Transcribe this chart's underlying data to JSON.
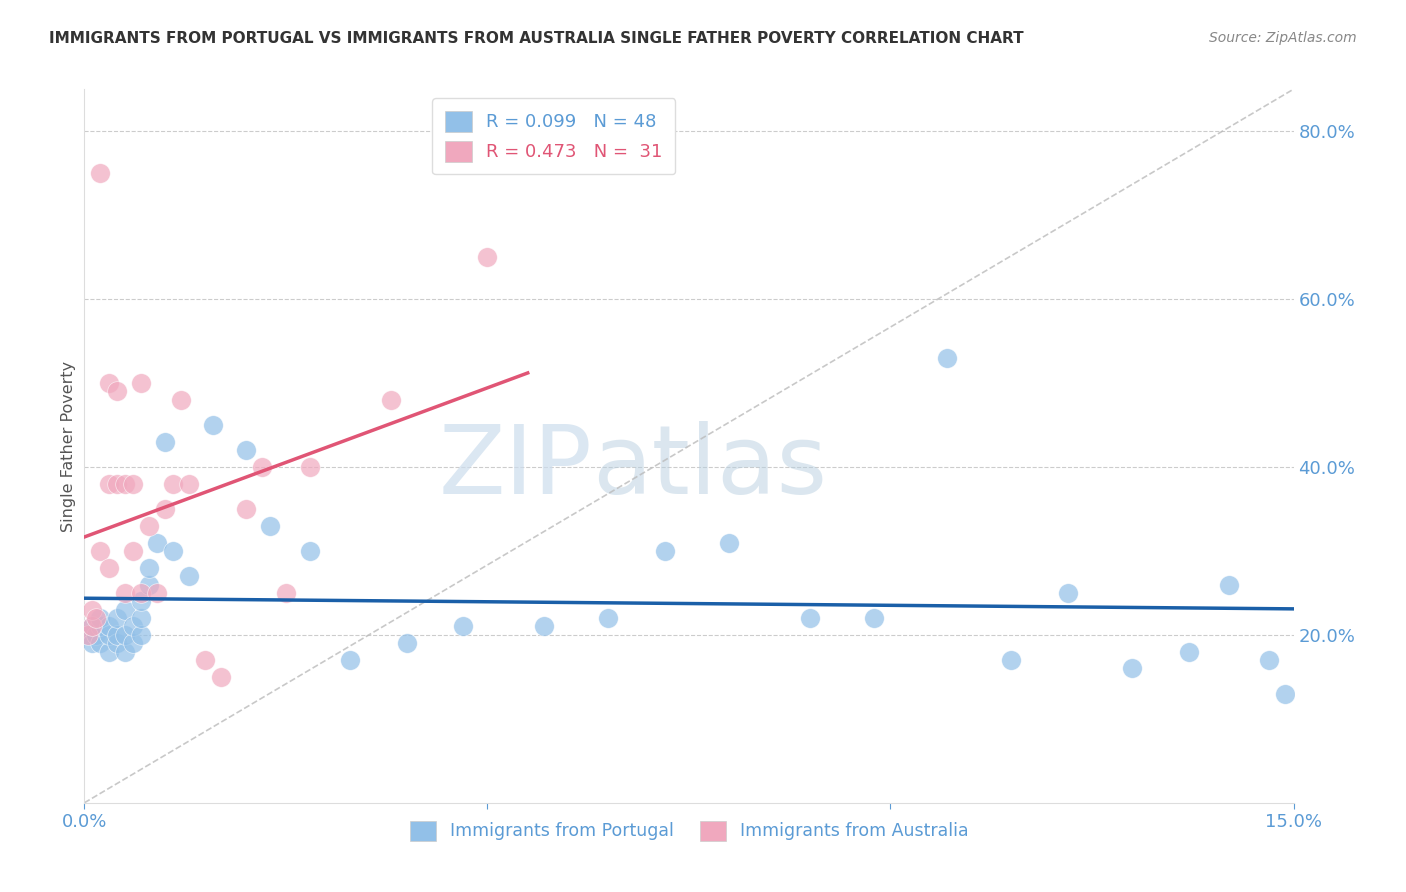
{
  "title": "IMMIGRANTS FROM PORTUGAL VS IMMIGRANTS FROM AUSTRALIA SINGLE FATHER POVERTY CORRELATION CHART",
  "source": "Source: ZipAtlas.com",
  "ylabel": "Single Father Poverty",
  "watermark_zip": "ZIP",
  "watermark_atlas": "atlas",
  "legend_blue_r": "R = 0.099",
  "legend_blue_n": "N = 48",
  "legend_pink_r": "R = 0.473",
  "legend_pink_n": "N =  31",
  "blue_color": "#92c0e8",
  "pink_color": "#f0a8be",
  "line_blue": "#1a5fa8",
  "line_pink": "#e05575",
  "axis_label_color": "#5b9bd5",
  "title_color": "#333333",
  "source_color": "#888888",
  "ylabel_color": "#555555",
  "grid_color": "#cccccc",
  "diag_color": "#bbbbbb",
  "xlim": [
    0.0,
    0.15
  ],
  "ylim": [
    0.0,
    0.85
  ],
  "y_ticks_right": [
    0.2,
    0.4,
    0.6,
    0.8
  ],
  "y_tick_labels_right": [
    "20.0%",
    "40.0%",
    "60.0%",
    "80.0%"
  ],
  "portugal_x": [
    0.0005,
    0.001,
    0.001,
    0.0015,
    0.002,
    0.002,
    0.002,
    0.003,
    0.003,
    0.003,
    0.004,
    0.004,
    0.004,
    0.005,
    0.005,
    0.005,
    0.006,
    0.006,
    0.007,
    0.007,
    0.007,
    0.008,
    0.008,
    0.009,
    0.01,
    0.011,
    0.013,
    0.016,
    0.02,
    0.023,
    0.028,
    0.033,
    0.04,
    0.047,
    0.057,
    0.065,
    0.072,
    0.08,
    0.09,
    0.098,
    0.107,
    0.115,
    0.122,
    0.13,
    0.137,
    0.142,
    0.147,
    0.149
  ],
  "portugal_y": [
    0.2,
    0.19,
    0.21,
    0.2,
    0.19,
    0.21,
    0.22,
    0.18,
    0.2,
    0.21,
    0.19,
    0.2,
    0.22,
    0.18,
    0.2,
    0.23,
    0.19,
    0.21,
    0.2,
    0.22,
    0.24,
    0.26,
    0.28,
    0.31,
    0.43,
    0.3,
    0.27,
    0.45,
    0.42,
    0.33,
    0.3,
    0.17,
    0.19,
    0.21,
    0.21,
    0.22,
    0.3,
    0.31,
    0.22,
    0.22,
    0.53,
    0.17,
    0.25,
    0.16,
    0.18,
    0.26,
    0.17,
    0.13
  ],
  "australia_x": [
    0.0005,
    0.001,
    0.001,
    0.0015,
    0.002,
    0.002,
    0.003,
    0.003,
    0.003,
    0.004,
    0.004,
    0.005,
    0.005,
    0.006,
    0.006,
    0.007,
    0.007,
    0.008,
    0.009,
    0.01,
    0.011,
    0.012,
    0.013,
    0.015,
    0.017,
    0.02,
    0.022,
    0.025,
    0.028,
    0.038,
    0.05
  ],
  "australia_y": [
    0.2,
    0.21,
    0.23,
    0.22,
    0.75,
    0.3,
    0.28,
    0.38,
    0.5,
    0.38,
    0.49,
    0.25,
    0.38,
    0.38,
    0.3,
    0.25,
    0.5,
    0.33,
    0.25,
    0.35,
    0.38,
    0.48,
    0.38,
    0.17,
    0.15,
    0.35,
    0.4,
    0.25,
    0.4,
    0.48,
    0.65
  ]
}
